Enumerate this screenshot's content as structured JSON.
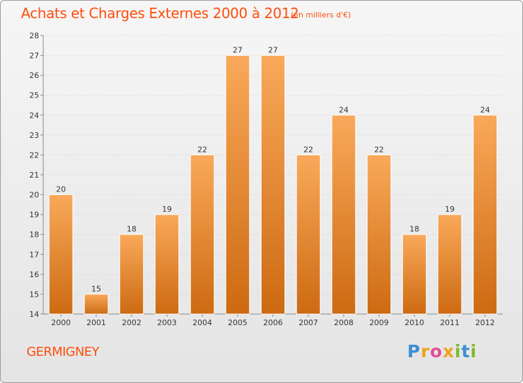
{
  "header": {
    "title": "Achats et Charges Externes 2000 à 2012",
    "subtitle": "(en milliers d'€)"
  },
  "footer": {
    "town": "GERMIGNEY",
    "logo_letters": [
      "P",
      "r",
      "o",
      "x",
      "i",
      "t",
      "i"
    ],
    "logo_colors": [
      "#3b8fd3",
      "#f0a21c",
      "#e24c9a",
      "#f0a21c",
      "#7cbb2c",
      "#3b8fd3",
      "#7cbb2c"
    ]
  },
  "colors": {
    "bar_light": "#f9a95a",
    "bar_dark": "#cd6a12",
    "text": "#333333",
    "accent": "#ff4d0d"
  },
  "chart_data": {
    "type": "bar",
    "categories": [
      "2000",
      "2001",
      "2002",
      "2003",
      "2004",
      "2005",
      "2006",
      "2007",
      "2008",
      "2009",
      "2010",
      "2011",
      "2012"
    ],
    "values": [
      20,
      15,
      18,
      19,
      22,
      27,
      27,
      22,
      24,
      22,
      18,
      19,
      24
    ],
    "ylim": [
      14,
      28
    ],
    "yticks": [
      14,
      15,
      16,
      17,
      18,
      19,
      20,
      21,
      22,
      23,
      24,
      25,
      26,
      27,
      28
    ],
    "grid": true
  }
}
